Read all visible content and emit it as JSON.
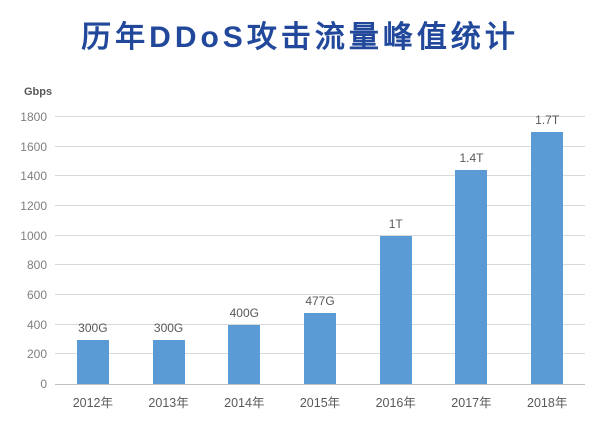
{
  "title": "历年DDoS攻击流量峰值统计",
  "chart_data": {
    "type": "bar",
    "title": "历年DDoS攻击流量峰值统计",
    "xlabel": "",
    "ylabel": "Gbps",
    "categories": [
      "2012年",
      "2013年",
      "2014年",
      "2015年",
      "2016年",
      "2017年",
      "2018年"
    ],
    "values": [
      300,
      300,
      400,
      477,
      1000,
      1440,
      1700
    ],
    "data_labels": [
      "300G",
      "300G",
      "400G",
      "477G",
      "1T",
      "1.4T",
      "1.7T"
    ],
    "ylim": [
      0,
      1800
    ],
    "yticks": [
      0,
      200,
      400,
      600,
      800,
      1000,
      1200,
      1400,
      1600,
      1800
    ],
    "grid": "horizontal",
    "legend": "none",
    "colors": {
      "bar": "#5B9BD5",
      "title": "#21489B",
      "tick_label": "#7F7F7F",
      "data_label": "#595959",
      "axis_label": "#595959",
      "gridline": "#D9D9D9",
      "axis_line": "#BFBFBF",
      "background": "#FFFFFF"
    }
  }
}
